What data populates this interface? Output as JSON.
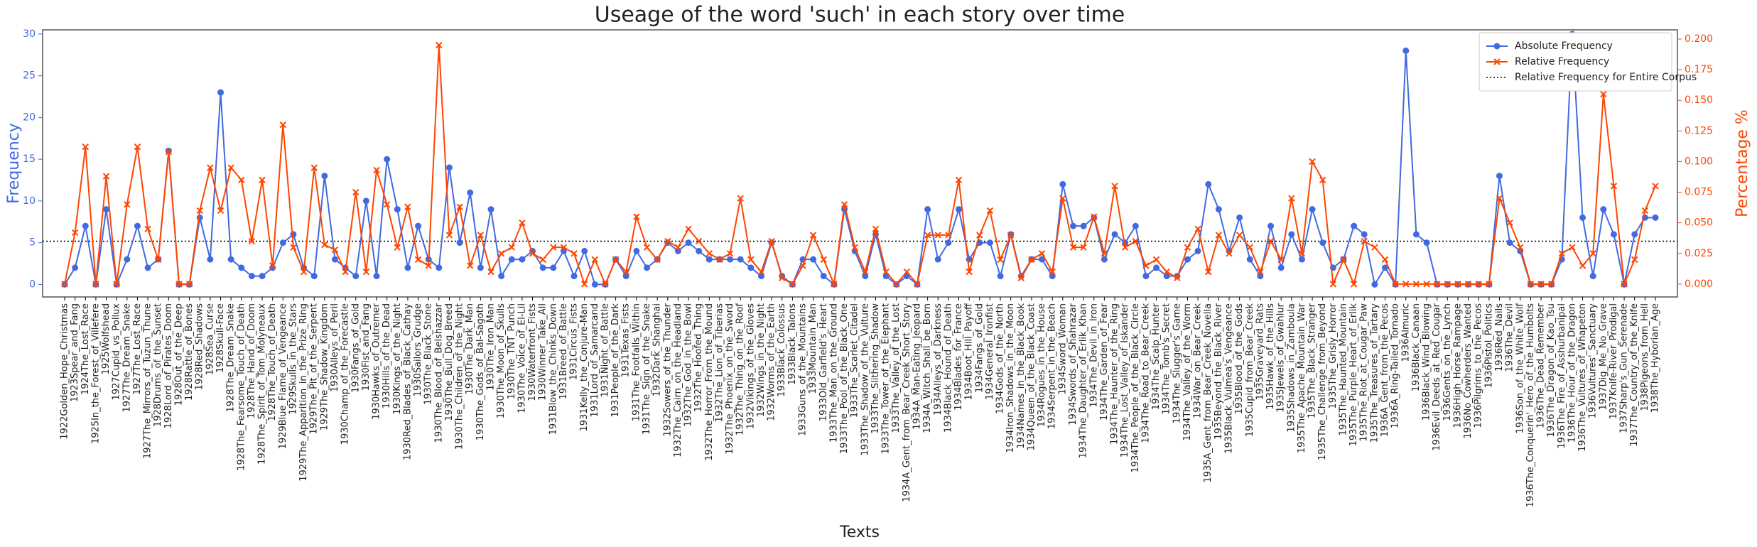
{
  "chart_data": {
    "type": "line",
    "title": "Useage of the word 'such' in each story over time",
    "xlabel": "Texts",
    "ylabel": "Frequency",
    "y2label": "Percentage %",
    "categories": [
      "1922Golden_Hope_Christmas",
      "1923Spear_and_Fang",
      "1924The_Lost_Race",
      "1925In_the_Forest_of_Villefere",
      "1925Wolfshead",
      "1927Cupid_vs_Pollux",
      "1927The_Dream_Snake",
      "1927The_Lost_Race",
      "1927The_Mirrors_of_Tuzun_Thune",
      "1928Drums_of_the_Sunset",
      "1928Lord_of_Pirates_Doom",
      "1928Out_of_the_Deep",
      "1928Rattle_of_Bones",
      "1928Red_Shadows",
      "1928Sea_Curse",
      "1928Skull-Face",
      "1928The_Dream_Snake",
      "1928The_Fearsome_Touch_of_Death",
      "1928The_Hand_of_Doom",
      "1928The_Spirit_of_Tom_Molyneaux",
      "1928The_Touch_of_Death",
      "1929Blue_Flame_of_Vengeance",
      "1929Skulls_in_the_Stars",
      "1929The_Apparition_in_the_Prize_Ring",
      "1929The_Pit_of_the_Serpent",
      "1929The_Shadow_Kingdom",
      "1930Alleys_of_Peril",
      "1930Champ_of_the_Forecastle",
      "1930Fangs_of_Gold",
      "1930Fist_and_Fang",
      "1930Hawks_of_Outremer",
      "1930Hills_of_the_Dead",
      "1930Kings_of_the_Night",
      "1930Red_Blades_of_Black_Cathay",
      "1930Sailors_Grudge",
      "1930The_Black_Stone",
      "1930The_Blood_of_Belshazzar",
      "1930The_Bull_Dog_Breed",
      "1930The_Children_of_the_Night",
      "1930The_Dark_Man",
      "1930The_Gods_of_Bal-Sagoth",
      "1930The_Iron_Man",
      "1930The_Moon_of_Skulls",
      "1930The_TNT_Punch",
      "1930The_Voice_of_El-Lil",
      "1930Waterfront_Fists",
      "1930Winner_Take_All",
      "1931Blow_the_Chinks_Down",
      "1931Breed_of_Battle",
      "1931Circus_Fists",
      "1931Kelly_the_Conjure-Man",
      "1931Lord_of_Samarcand",
      "1931Night_of_Battle",
      "1931People_of_the_Dark",
      "1931Texas_Fists",
      "1931The_Footfalls_Within",
      "1931The_Sign_of_the_Snake",
      "1932Dark_Shanghai",
      "1932Sowers_of_the_Thunder",
      "1932The_Cairn_on_the_Headland",
      "1932The_God_in_the_Bowl",
      "1932The_Hoofed_Thing",
      "1932The_Horror_From_the_Mound",
      "1932The_Lion_of_Tiberias",
      "1932The_Phoenix_on_the_Sword",
      "1932The_Thing_on_the_Roof",
      "1932Vikings_of_the_Gloves",
      "1932Wings_in_the_Night",
      "1932Worms_of_the_Earth",
      "1933Black_Colossus",
      "1933Black_Talons",
      "1933Guns_of_the_Mountains",
      "1933Mountain_Man",
      "1933Old_Garfield's_Heart",
      "1933The_Man_on_the_Ground",
      "1933The_Pool_of_the_Black_One",
      "1933The_Scarlet_Citadel",
      "1933The_Shadow_of_the_Vulture",
      "1933The_Slithering_Shadow",
      "1933The_Tower_of_the_Elephant",
      "1933The_Valley_of_the_Lost",
      "1934A_Gent_from_Bear_Creek_Short_Story",
      "1934A_Man-Eating_Jeopard",
      "1934A_Witch_Shall_be_Born",
      "1934Alleys_of_Darkness",
      "1934Black_Hound_of_Death",
      "1934Blades_for_France",
      "1934Boot_Hill_Payoff",
      "1934Fangs_of_Gold",
      "1934General_Ironfist",
      "1934Gods_of_the_North",
      "1934Iron_Shadows_in_the_Moon",
      "1934Names_in_the_Black_Book",
      "1934Queen_of_the_Black_Coast",
      "1934Rogues_in_the_House",
      "1934Serpent_in_the_Beach",
      "1934Sword_Woman",
      "1934Swords_of_Shahrazar",
      "1934The_Daughter_of_Erlik_Khan",
      "1934The_Devil_in_Iron",
      "1934The_Garden_of_Fear",
      "1934The_Haunter_of_the_Ring",
      "1934The_Lost_Valley_of_Iskander",
      "1934The_People_of_the_Black_Circle",
      "1934The_Road_to_Bear_Creek",
      "1934The_Scalp_Hunter",
      "1934The_Tomb's_Secret",
      "1934The_Slugger's_Game",
      "1934The_Valley_of_the_Worm",
      "1934War_on_Bear_Creek",
      "1935A_Gent_from_Bear_Creek_Novella",
      "1935Beyond_the_Black_River",
      "1935Black_Vulmea's_Vengeance",
      "1935Blood_of_the_Gods",
      "1935Cupid_from_Bear_Creek",
      "1935Graveyard_Rats",
      "1935Hawk_of_the_Hills",
      "1935Jewels_of_Gwahlur",
      "1935Shadows_in_Zamboula",
      "1935The_Apache_Mountain_War",
      "1935The_Black_Stranger",
      "1935The_Challenge_from_Beyond",
      "1935The_Grisly_Horror",
      "1935The_Haunted_Mountain",
      "1935The_Purple_Heart_of_Erlik",
      "1935The_Riot_at_Cougar_Paw",
      "1935The_Treasures_of_Tartary",
      "1936A_Gent_from_the_Pecos",
      "1936A_Ring-Tailed_Tornado",
      "1936Almuric",
      "1936Black_Canaan",
      "1936Black_Wind_Blowing",
      "1936Evil_Deeds_at_Red_Cougar",
      "1936Gents_on_the_Lynch",
      "1936High_Horse_Rampage",
      "1936No_Cowherders_Wanted",
      "1936Pilgrims_to_the_Pecos",
      "1936Pistol_Politics",
      "1936Red_Nails",
      "1936The_Devil",
      "1936Son_of_the_White_Wolf",
      "1936The_Conquerin'_Hero_of_the_Humbolts",
      "1936The_Dead_Remember",
      "1936The_Dragon_of_Kao_Tsu",
      "1936The_Fire_of_Asshurbanipal",
      "1936The_Hour_of_the_Dragon",
      "1936The_Vultures_of_Whapeton",
      "1936Vultures'_Sanctuary",
      "1937Dig_Me_No_Grave",
      "1937Knife-River_Prodigal",
      "1937Sharp's_Gun_Serenade",
      "1937The_Country_of_the_Knife",
      "1938Pigeons_from_Hell",
      "1938The_Hyborian_Age"
    ],
    "series": [
      {
        "name": "Absolute Frequency",
        "color": "#4169e1",
        "axis": "y",
        "marker": "circle",
        "values": [
          0,
          2,
          7,
          0,
          9,
          0,
          3,
          7,
          2,
          3,
          16,
          0,
          0,
          8,
          3,
          23,
          3,
          2,
          1,
          1,
          2,
          5,
          6,
          2,
          1,
          13,
          3,
          2,
          1,
          10,
          1,
          15,
          9,
          2,
          7,
          3,
          2,
          14,
          5,
          11,
          2,
          9,
          1,
          3,
          3,
          4,
          2,
          2,
          4,
          1,
          4,
          0,
          0,
          3,
          1,
          4,
          2,
          3,
          5,
          4,
          5,
          4,
          3,
          3,
          3,
          3,
          2,
          1,
          5,
          1,
          0,
          3,
          3,
          1,
          0,
          9,
          4,
          1,
          6,
          1,
          0,
          1,
          0,
          9,
          3,
          5,
          9,
          3,
          5,
          5,
          1,
          6,
          1,
          3,
          3,
          1,
          12,
          7,
          7,
          8,
          3,
          6,
          5,
          7,
          1,
          2,
          1,
          1,
          3,
          4,
          12,
          9,
          4,
          8,
          3,
          1,
          7,
          2,
          6,
          3,
          9,
          5,
          2,
          3,
          7,
          6,
          0,
          2,
          0,
          28,
          6,
          5,
          0,
          0,
          0,
          0,
          0,
          0,
          13,
          5,
          4,
          0,
          0,
          0,
          3,
          30,
          8,
          1,
          9,
          6,
          0,
          6,
          8,
          8
        ]
      },
      {
        "name": "Relative Frequency",
        "color": "#ff4500",
        "axis": "y2",
        "marker": "x",
        "values": [
          0,
          0.042,
          0.112,
          0,
          0.088,
          0,
          0.065,
          0.112,
          0.045,
          0.02,
          0.108,
          0,
          0,
          0.06,
          0.095,
          0.06,
          0.095,
          0.085,
          0.035,
          0.085,
          0.015,
          0.13,
          0.03,
          0.01,
          0.095,
          0.032,
          0.028,
          0.01,
          0.075,
          0.01,
          0.093,
          0.065,
          0.03,
          0.063,
          0.02,
          0.015,
          0.195,
          0.04,
          0.063,
          0.015,
          0.04,
          0.01,
          0.025,
          0.03,
          0.05,
          0.025,
          0.02,
          0.03,
          0.03,
          0.025,
          0,
          0.02,
          0,
          0.02,
          0.01,
          0.055,
          0.03,
          0.02,
          0.035,
          0.03,
          0.045,
          0.035,
          0.025,
          0.02,
          0.025,
          0.07,
          0.02,
          0.01,
          0.035,
          0.005,
          0,
          0.015,
          0.04,
          0.02,
          0,
          0.065,
          0.03,
          0.01,
          0.045,
          0.01,
          0,
          0.01,
          0,
          0.04,
          0.04,
          0.04,
          0.085,
          0.01,
          0.04,
          0.06,
          0.02,
          0.04,
          0.005,
          0.02,
          0.025,
          0.01,
          0.07,
          0.03,
          0.03,
          0.055,
          0.025,
          0.08,
          0.03,
          0.035,
          0.015,
          0.02,
          0.01,
          0.005,
          0.03,
          0.045,
          0.01,
          0.04,
          0.025,
          0.04,
          0.03,
          0.01,
          0.035,
          0.02,
          0.07,
          0.025,
          0.1,
          0.085,
          0,
          0.02,
          0,
          0.035,
          0.03,
          0.02,
          0,
          0,
          0,
          0,
          0,
          0,
          0,
          0,
          0,
          0,
          0.07,
          0.05,
          0.03,
          0,
          0,
          0,
          0.025,
          0.03,
          0.015,
          0.025,
          0.155,
          0.08,
          0,
          0.02,
          0.06,
          0.08
        ]
      }
    ],
    "reference_line": {
      "name": "Relative Frequency for Entire Corpus",
      "value": 0.035,
      "axis": "y2",
      "color": "#000000"
    },
    "ylim": [
      -1.5,
      30.5
    ],
    "yticks": [
      0,
      5,
      10,
      15,
      20,
      25,
      30
    ],
    "y2lim": [
      -0.0105,
      0.2075
    ],
    "y2ticks": [
      {
        "value": 0,
        "label": "0.000"
      },
      {
        "value": 0.025,
        "label": "0.025"
      },
      {
        "value": 0.05,
        "label": "0.050"
      },
      {
        "value": 0.075,
        "label": "0.075"
      },
      {
        "value": 0.1,
        "label": "0.100"
      },
      {
        "value": 0.125,
        "label": "0.125"
      },
      {
        "value": 0.15,
        "label": "0.150"
      },
      {
        "value": 0.175,
        "label": "0.175"
      },
      {
        "value": 0.2,
        "label": "0.200"
      }
    ],
    "legend": "upper right"
  }
}
